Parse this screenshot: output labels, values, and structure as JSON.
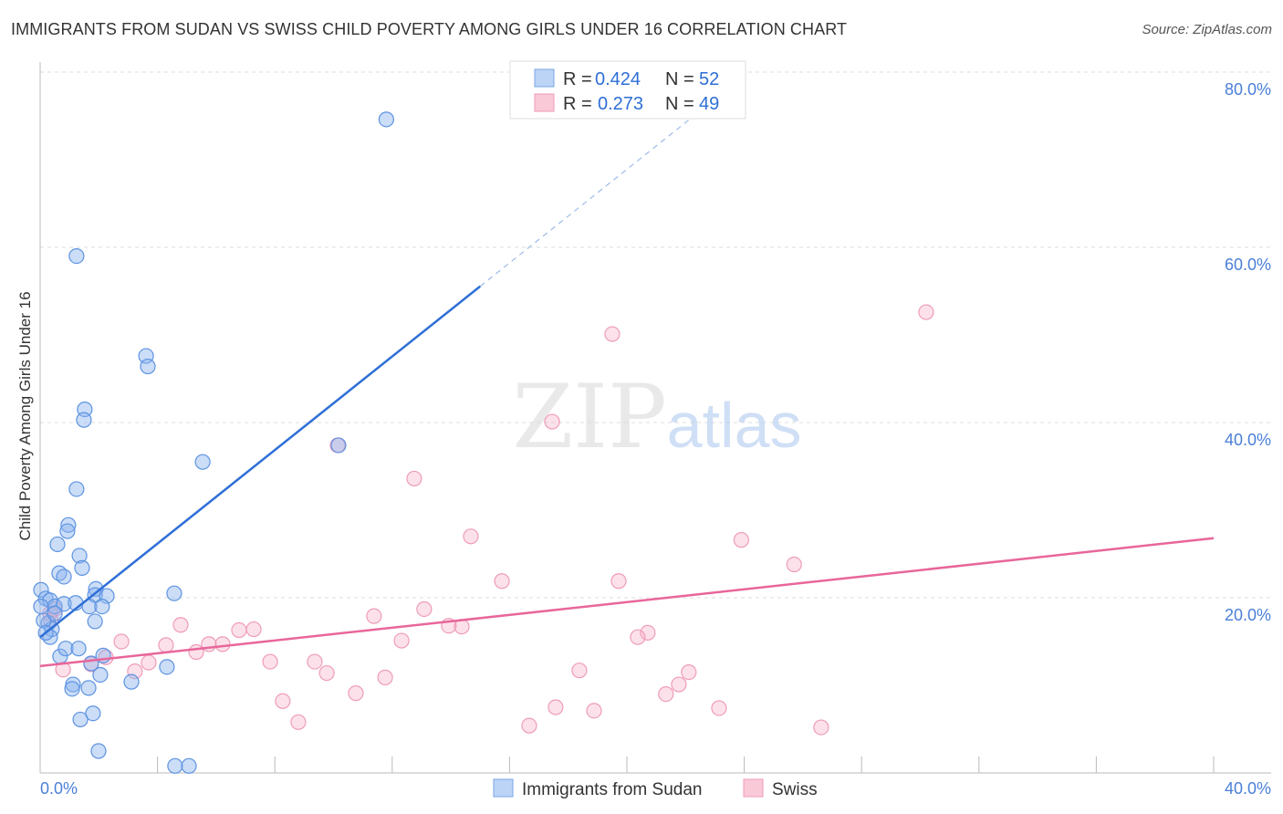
{
  "title": "IMMIGRANTS FROM SUDAN VS SWISS CHILD POVERTY AMONG GIRLS UNDER 16 CORRELATION CHART",
  "source": "Source: ZipAtlas.com",
  "watermark": "ZIPatlas",
  "chart_data": {
    "type": "scatter",
    "title": "IMMIGRANTS FROM SUDAN VS SWISS CHILD POVERTY AMONG GIRLS UNDER 16 CORRELATION CHART",
    "xlabel": "",
    "ylabel": "Child Poverty Among Girls Under 16",
    "xlim": [
      0,
      40
    ],
    "ylim": [
      0,
      80
    ],
    "x_tick_labels": [
      "0.0%",
      "40.0%"
    ],
    "y_ticks": [
      20,
      40,
      60,
      80
    ],
    "y_tick_labels": [
      "20.0%",
      "40.0%",
      "60.0%",
      "80.0%"
    ],
    "grid": true,
    "legend_position": "top-center",
    "series": [
      {
        "name": "Immigrants from Sudan",
        "color": "#6fa3ea",
        "line_color": "#2f6fd6",
        "R": "0.424",
        "N": "52",
        "trend": {
          "x0": 0,
          "y0": 15.5,
          "x_solid_end": 15.0,
          "x1": 24.1,
          "slope": 2.67
        },
        "points": [
          [
            11.8,
            74.6
          ],
          [
            1.24,
            59.0
          ],
          [
            3.61,
            47.6
          ],
          [
            3.67,
            46.4
          ],
          [
            1.52,
            41.5
          ],
          [
            1.49,
            40.3
          ],
          [
            5.54,
            35.5
          ],
          [
            1.24,
            32.4
          ],
          [
            0.96,
            28.3
          ],
          [
            0.93,
            27.6
          ],
          [
            0.59,
            26.1
          ],
          [
            1.34,
            24.8
          ],
          [
            1.43,
            23.4
          ],
          [
            0.65,
            22.8
          ],
          [
            0.81,
            22.4
          ],
          [
            1.9,
            21.0
          ],
          [
            1.87,
            20.3
          ],
          [
            2.27,
            20.2
          ],
          [
            4.57,
            20.5
          ],
          [
            0.03,
            20.9
          ],
          [
            0.19,
            19.9
          ],
          [
            0.34,
            19.7
          ],
          [
            0.5,
            19.0
          ],
          [
            0.81,
            19.3
          ],
          [
            1.21,
            19.4
          ],
          [
            1.68,
            19.0
          ],
          [
            2.11,
            19.0
          ],
          [
            1.87,
            17.3
          ],
          [
            0.28,
            17.1
          ],
          [
            0.4,
            16.4
          ],
          [
            0.34,
            15.5
          ],
          [
            0.68,
            13.3
          ],
          [
            0.87,
            14.2
          ],
          [
            1.31,
            14.2
          ],
          [
            2.15,
            13.4
          ],
          [
            1.74,
            12.5
          ],
          [
            2.05,
            11.2
          ],
          [
            4.32,
            12.1
          ],
          [
            1.12,
            10.1
          ],
          [
            1.09,
            9.6
          ],
          [
            1.65,
            9.7
          ],
          [
            3.11,
            10.4
          ],
          [
            1.8,
            6.8
          ],
          [
            1.37,
            6.1
          ],
          [
            1.99,
            2.5
          ],
          [
            4.6,
            0.8
          ],
          [
            5.07,
            0.8
          ],
          [
            0.12,
            17.4
          ],
          [
            0.19,
            16.0
          ],
          [
            0.5,
            18.2
          ],
          [
            10.17,
            37.4
          ],
          [
            0.03,
            19.0
          ]
        ]
      },
      {
        "name": "Swiss",
        "color": "#f4a7bf",
        "line_color": "#e8669a",
        "R": "0.273",
        "N": "49",
        "trend": {
          "x0": 0,
          "y0": 12.2,
          "x1": 40,
          "y1": 26.8
        },
        "points": [
          [
            30.2,
            52.6
          ],
          [
            19.5,
            50.1
          ],
          [
            17.45,
            40.1
          ],
          [
            10.14,
            37.4
          ],
          [
            12.75,
            33.6
          ],
          [
            14.68,
            27.0
          ],
          [
            23.9,
            26.6
          ],
          [
            25.7,
            23.8
          ],
          [
            15.74,
            21.9
          ],
          [
            19.72,
            21.9
          ],
          [
            13.09,
            18.7
          ],
          [
            11.38,
            17.9
          ],
          [
            13.93,
            16.8
          ],
          [
            14.37,
            16.7
          ],
          [
            20.71,
            16.0
          ],
          [
            20.37,
            15.5
          ],
          [
            12.32,
            15.1
          ],
          [
            7.28,
            16.4
          ],
          [
            6.78,
            16.3
          ],
          [
            4.79,
            16.9
          ],
          [
            2.77,
            15.0
          ],
          [
            4.29,
            14.6
          ],
          [
            5.32,
            13.8
          ],
          [
            5.75,
            14.7
          ],
          [
            6.22,
            14.7
          ],
          [
            7.84,
            12.7
          ],
          [
            9.36,
            12.7
          ],
          [
            2.24,
            13.2
          ],
          [
            3.7,
            12.6
          ],
          [
            3.23,
            11.6
          ],
          [
            0.78,
            11.8
          ],
          [
            0.37,
            17.4
          ],
          [
            0.5,
            18.7
          ],
          [
            0.34,
            18.2
          ],
          [
            1.74,
            12.4
          ],
          [
            9.77,
            11.4
          ],
          [
            11.76,
            10.9
          ],
          [
            18.38,
            11.7
          ],
          [
            22.11,
            11.5
          ],
          [
            21.77,
            10.1
          ],
          [
            21.33,
            9.0
          ],
          [
            10.76,
            9.1
          ],
          [
            8.27,
            8.2
          ],
          [
            17.57,
            7.5
          ],
          [
            18.88,
            7.1
          ],
          [
            23.14,
            7.4
          ],
          [
            8.8,
            5.8
          ],
          [
            16.67,
            5.4
          ],
          [
            26.62,
            5.2
          ]
        ]
      }
    ]
  },
  "legend": {
    "r_label": "R =",
    "n_label": "N ="
  }
}
